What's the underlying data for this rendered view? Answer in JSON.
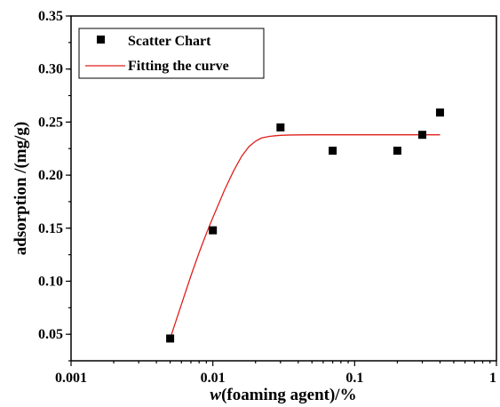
{
  "chart_data": {
    "type": "scatter",
    "xscale": "log",
    "xlim": [
      0.001,
      1
    ],
    "ylim": [
      0.025,
      0.35
    ],
    "x_ticks": [
      {
        "value": 0.001,
        "label": "0.001"
      },
      {
        "value": 0.01,
        "label": "0.01"
      },
      {
        "value": 0.1,
        "label": "0.1"
      },
      {
        "value": 1,
        "label": "1"
      }
    ],
    "y_ticks": [
      {
        "value": 0.05,
        "label": "0.05"
      },
      {
        "value": 0.1,
        "label": "0.10"
      },
      {
        "value": 0.15,
        "label": "0.15"
      },
      {
        "value": 0.2,
        "label": "0.20"
      },
      {
        "value": 0.25,
        "label": "0.25"
      },
      {
        "value": 0.3,
        "label": "0.30"
      },
      {
        "value": 0.35,
        "label": "0.35"
      }
    ],
    "xlabel_italic": "w",
    "xlabel_rest": "(foaming agent)/%",
    "ylabel": "adsorption /(mg/g)",
    "grid": false,
    "legend_position": "top-left",
    "series": [
      {
        "name": "Scatter Chart",
        "kind": "scatter",
        "marker": "square",
        "color": "#000000",
        "x": [
          0.005,
          0.01,
          0.03,
          0.07,
          0.2,
          0.3,
          0.4
        ],
        "y": [
          0.046,
          0.148,
          0.245,
          0.223,
          0.223,
          0.238,
          0.259
        ]
      },
      {
        "name": "Fitting the curve",
        "kind": "line",
        "color": "#e0201c",
        "x": [
          0.005,
          0.006,
          0.007,
          0.008,
          0.009,
          0.01,
          0.012,
          0.014,
          0.016,
          0.018,
          0.02,
          0.022,
          0.025,
          0.028,
          0.03,
          0.035,
          0.04,
          0.05,
          0.07,
          0.1,
          0.2,
          0.4
        ],
        "y": [
          0.046,
          0.078,
          0.105,
          0.127,
          0.145,
          0.16,
          0.185,
          0.204,
          0.218,
          0.227,
          0.232,
          0.235,
          0.2365,
          0.2372,
          0.2375,
          0.2378,
          0.2379,
          0.238,
          0.238,
          0.238,
          0.238,
          0.238
        ]
      }
    ]
  }
}
